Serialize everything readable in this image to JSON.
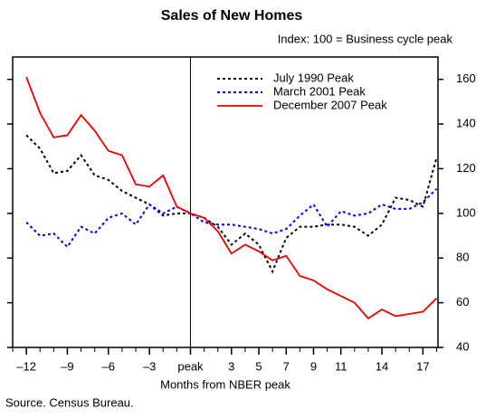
{
  "chart_data": {
    "type": "line",
    "title": "Sales of New Homes",
    "subtitle": "Index: 100 = Business cycle peak",
    "xlabel": "Months from NBER peak",
    "source": "Source. Census Bureau.",
    "x": [
      -12,
      -11,
      -10,
      -9,
      -8,
      -7,
      -6,
      -5,
      -4,
      -3,
      -2,
      -1,
      0,
      1,
      2,
      3,
      4,
      5,
      6,
      7,
      8,
      9,
      10,
      11,
      12,
      13,
      14,
      15,
      16,
      17,
      18
    ],
    "series": [
      {
        "name": "July 1990 Peak",
        "color": "#000000",
        "style": "dotted",
        "values": [
          135,
          129,
          118,
          119,
          126,
          117,
          115,
          110,
          107,
          104,
          99,
          100,
          100,
          98,
          94,
          86,
          91,
          86,
          74,
          89,
          94,
          94,
          95,
          95,
          94,
          90,
          95,
          107,
          106,
          103,
          125
        ]
      },
      {
        "name": "March 2001 Peak",
        "color": "#0000ee",
        "style": "dotted",
        "values": [
          96,
          90,
          91,
          85,
          94,
          91,
          98,
          100,
          95,
          104,
          100,
          103,
          100,
          96,
          95,
          95,
          94,
          93,
          91,
          93,
          99,
          104,
          94,
          101,
          99,
          100,
          104,
          102,
          102,
          105,
          111
        ]
      },
      {
        "name": "December 2007 Peak",
        "color": "#ee0000",
        "style": "solid",
        "values": [
          161,
          145,
          134,
          135,
          144,
          137,
          128,
          126,
          113,
          112,
          117,
          103,
          100,
          98,
          92,
          82,
          86,
          83,
          79,
          81,
          72,
          70,
          66,
          63,
          60,
          53,
          57,
          54,
          55,
          56,
          62
        ]
      }
    ],
    "xlim": [
      -13,
      18.1
    ],
    "xticks": [
      -12,
      -9,
      -6,
      -3,
      {
        "value": 0,
        "label": "peak"
      },
      3,
      5,
      7,
      9,
      11,
      14,
      17
    ],
    "minor_xticks": [
      -13,
      -12,
      -11,
      -10,
      -9,
      -8,
      -7,
      -6,
      -5,
      -4,
      -3,
      -2,
      -1,
      0,
      1,
      2,
      3,
      4,
      5,
      6,
      7,
      8,
      9,
      10,
      11,
      12,
      13,
      14,
      15,
      16,
      17,
      18
    ],
    "ylim": [
      40,
      170
    ],
    "yticks": [
      40,
      60,
      80,
      100,
      120,
      140,
      160
    ],
    "vline": 0,
    "legend": "top-right"
  }
}
